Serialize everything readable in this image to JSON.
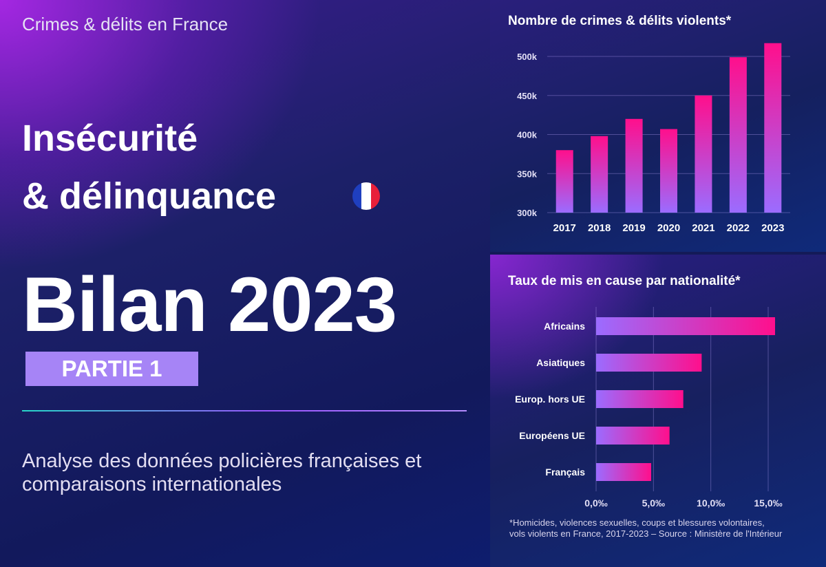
{
  "header": {
    "subtitle": "Crimes & délits en France"
  },
  "headline": {
    "line1": "Insécurité",
    "line2": "& délinquance"
  },
  "flag": {
    "colors": [
      "#1f3fbf",
      "#ffffff",
      "#e8203a"
    ]
  },
  "big_title": "Bilan 2023",
  "badge": {
    "label": "PARTIE 1",
    "color": "#a684f6"
  },
  "description": {
    "line1": "Analyse des données policières françaises et",
    "line2": "comparaisons internationales"
  },
  "footnote": {
    "line1": "*Homicides, violences sexuelles, coups et blessures volontaires,",
    "line2": "vols violents en France, 2017-2023 – Source : Ministère de l'Intérieur"
  },
  "colors": {
    "bar_low": "#9b6cff",
    "bar_high": "#ff0f8c"
  },
  "chart_data": [
    {
      "type": "bar",
      "title": "Nombre de crimes & délits violents*",
      "categories": [
        "2017",
        "2018",
        "2019",
        "2020",
        "2021",
        "2022",
        "2023"
      ],
      "values": [
        380,
        398,
        420,
        407,
        450,
        499,
        517
      ],
      "value_unit": "k",
      "ylim": [
        300,
        500
      ],
      "yticks": [
        300,
        350,
        400,
        450,
        500
      ],
      "ytick_labels": [
        "300k",
        "350k",
        "400k",
        "450k",
        "500k"
      ],
      "grid": true,
      "xlabel": "",
      "ylabel": ""
    },
    {
      "type": "bar",
      "orientation": "horizontal",
      "title": "Taux de mis en cause par nationalité*",
      "categories": [
        "Africains",
        "Asiatiques",
        "Europ. hors UE",
        "Européens UE",
        "Français"
      ],
      "values": [
        15.6,
        9.2,
        7.6,
        6.4,
        4.8
      ],
      "xlim": [
        0,
        15
      ],
      "xticks": [
        0,
        5,
        10,
        15
      ],
      "xtick_labels": [
        "0,0‰",
        "5,0‰",
        "10,0‰",
        "15,0‰"
      ],
      "grid": true,
      "xlabel": "",
      "ylabel": ""
    }
  ]
}
